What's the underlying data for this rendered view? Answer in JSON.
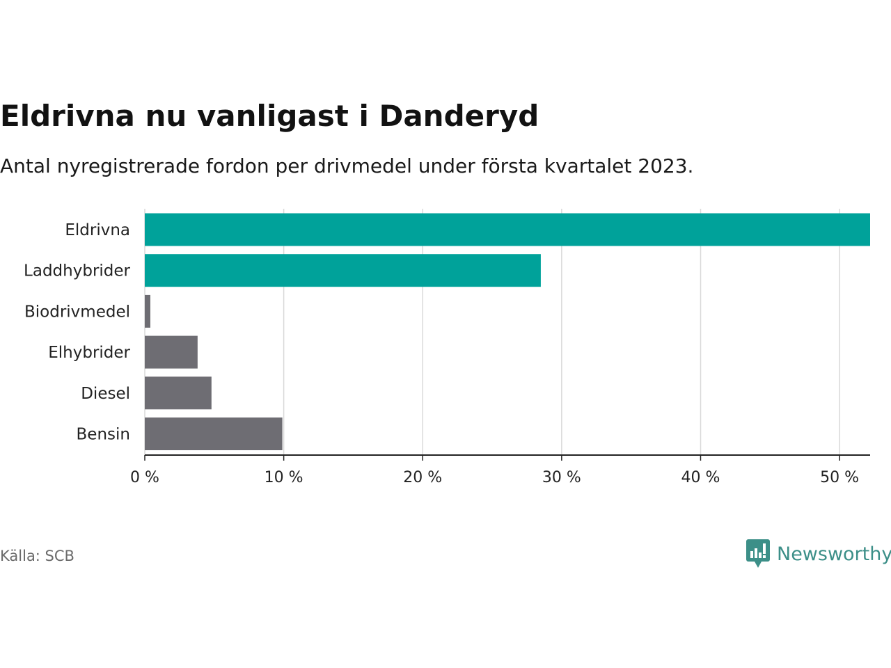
{
  "title": "Eldrivna nu vanligast i Danderyd",
  "subtitle": "Antal nyregistrerade fordon per drivmedel under första kvartalet 2023.",
  "source": "Källa: SCB",
  "brand": {
    "name": "Newsworthy",
    "icon": "newsworthy-logo-icon"
  },
  "colors": {
    "highlight": "#00a29a",
    "other": "#6e6d73",
    "grid": "#d9d9d9",
    "axis": "#222222",
    "brand": "#3c8f88"
  },
  "chart_data": {
    "type": "bar",
    "orientation": "horizontal",
    "categories": [
      "Eldrivna",
      "Laddhybrider",
      "Biodrivmedel",
      "Elhybrider",
      "Diesel",
      "Bensin"
    ],
    "values": [
      52.2,
      28.5,
      0.4,
      3.8,
      4.8,
      9.9
    ],
    "highlighted": [
      true,
      true,
      false,
      false,
      false,
      false
    ],
    "xlim": [
      0,
      52.2
    ],
    "xticks": [
      0,
      10,
      20,
      30,
      40,
      50
    ],
    "xtick_labels": [
      "0 %",
      "10 %",
      "20 %",
      "30 %",
      "40 %",
      "50 %"
    ],
    "xlabel": "",
    "ylabel": "",
    "grid": true
  }
}
